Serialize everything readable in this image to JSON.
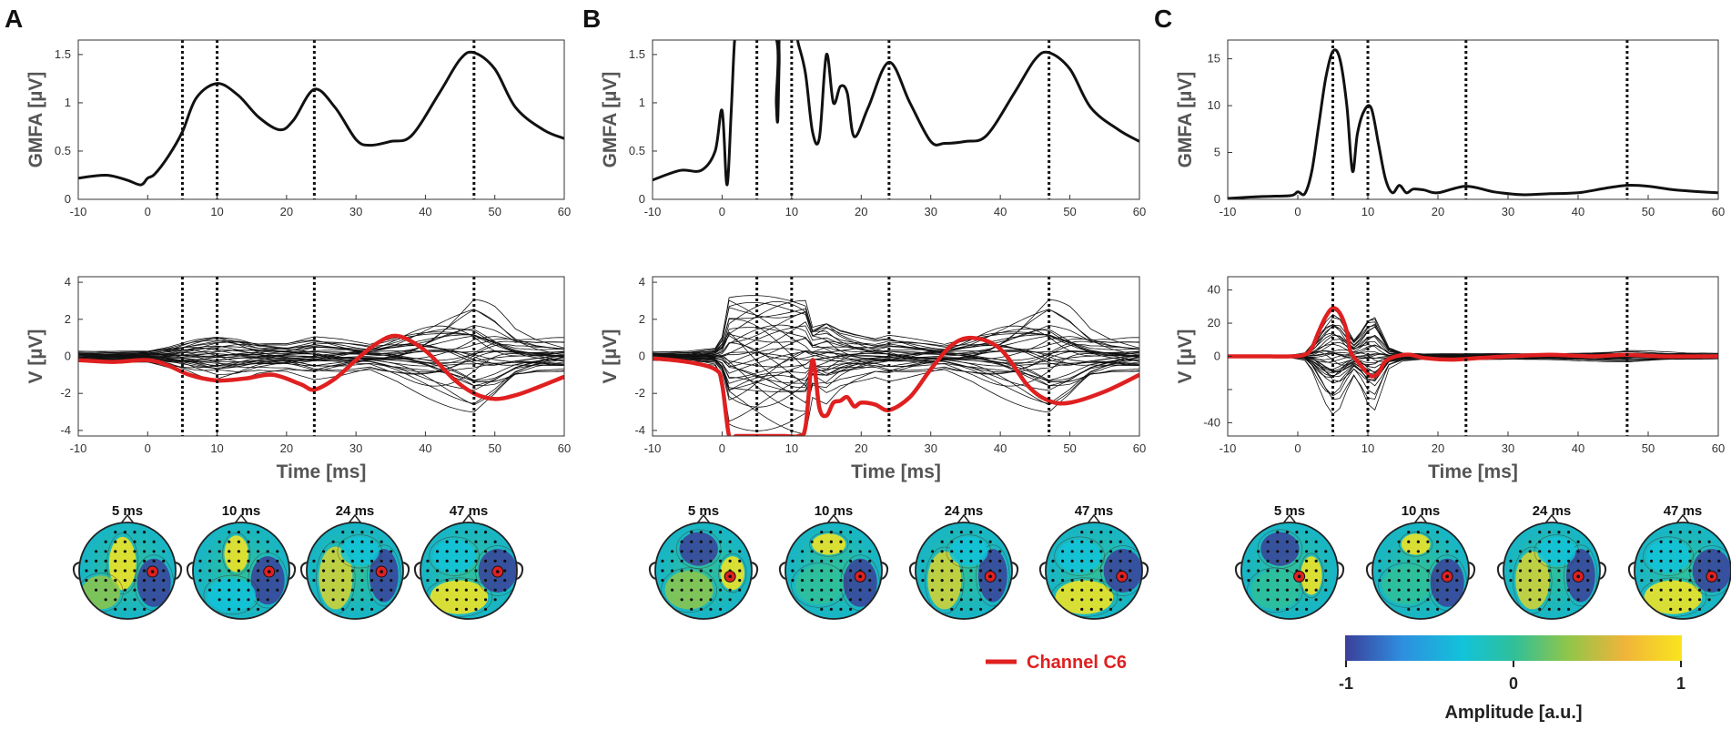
{
  "figure": {
    "panels": [
      "A",
      "B",
      "C"
    ],
    "gmfa_ylabel": "GMFA [µV]",
    "v_ylabel": "V [µV]",
    "xlabel": "Time [ms]",
    "legend_label": "Channel C6",
    "colorbar": {
      "label": "Amplitude [a.u.]",
      "ticks": [
        "-1",
        "0",
        "1"
      ],
      "colors": [
        "#3b3f99",
        "#2e8fe0",
        "#12c3d9",
        "#2fbf9a",
        "#8ec64a",
        "#f0b43a",
        "#f9e51d"
      ]
    },
    "topo_times": [
      "5 ms",
      "10 ms",
      "24 ms",
      "47 ms"
    ],
    "colors": {
      "trace": "#111111",
      "highlight": "#e02020",
      "axis": "#333333"
    }
  },
  "chart_data": [
    {
      "panel": "A",
      "type": "line",
      "title": "",
      "xlabel": "",
      "ylabel": "GMFA [µV]",
      "xlim": [
        -10,
        60
      ],
      "ylim": [
        0,
        1.65
      ],
      "xticks": [
        -10,
        0,
        10,
        20,
        30,
        40,
        50,
        60
      ],
      "yticks": [
        0,
        0.5,
        1,
        1.5
      ],
      "ytick_labels": [
        "0",
        "0.5",
        "1",
        "1.5"
      ],
      "vlines": [
        5,
        10,
        24,
        47
      ],
      "series": [
        {
          "name": "GMFA",
          "x": [
            -10,
            -6,
            -3,
            -1,
            0,
            1,
            3,
            5,
            7,
            10,
            13,
            16,
            19,
            21,
            24,
            27,
            30,
            32,
            35,
            38,
            42,
            45,
            47,
            50,
            53,
            57,
            60
          ],
          "y": [
            0.22,
            0.25,
            0.2,
            0.15,
            0.22,
            0.26,
            0.45,
            0.7,
            1.05,
            1.2,
            1.08,
            0.85,
            0.72,
            0.82,
            1.14,
            0.95,
            0.62,
            0.56,
            0.6,
            0.66,
            1.1,
            1.45,
            1.52,
            1.35,
            0.95,
            0.72,
            0.63
          ]
        }
      ]
    },
    {
      "panel": "A",
      "type": "line",
      "xlabel": "Time [ms]",
      "ylabel": "V [µV]",
      "xlim": [
        -10,
        60
      ],
      "ylim": [
        -4.3,
        4.3
      ],
      "xticks": [
        -10,
        0,
        10,
        20,
        30,
        40,
        50,
        60
      ],
      "yticks": [
        -4,
        -2,
        0,
        2,
        4
      ],
      "ytick_labels": [
        "-4",
        "-2",
        "0",
        "2",
        "4"
      ],
      "vlines": [
        5,
        10,
        24,
        47
      ],
      "highlight": {
        "name": "Channel C6",
        "x": [
          -10,
          -5,
          0,
          3,
          6,
          10,
          14,
          18,
          22,
          24,
          27,
          30,
          33,
          36,
          40,
          44,
          47,
          50,
          53,
          56,
          60
        ],
        "y": [
          -0.2,
          -0.3,
          -0.2,
          -0.5,
          -1.0,
          -1.3,
          -1.2,
          -1.0,
          -1.5,
          -1.8,
          -1.2,
          -0.2,
          0.7,
          1.1,
          0.3,
          -1.2,
          -2.0,
          -2.3,
          -2.1,
          -1.7,
          -1.1
        ]
      },
      "butterfly": {
        "channels": 36,
        "x": [
          -10,
          -5,
          0,
          3,
          5,
          7,
          10,
          13,
          16,
          20,
          24,
          28,
          32,
          36,
          40,
          44,
          47,
          50,
          53,
          56,
          60
        ],
        "profile": [
          0.35,
          0.35,
          0.4,
          0.7,
          1.0,
          1.3,
          1.6,
          1.4,
          1.0,
          0.9,
          1.3,
          1.1,
          0.8,
          1.4,
          2.2,
          3.0,
          3.6,
          2.8,
          1.6,
          1.2,
          1.1
        ]
      }
    },
    {
      "panel": "B",
      "type": "line",
      "xlabel": "",
      "ylabel": "GMFA [µV]",
      "xlim": [
        -10,
        60
      ],
      "ylim": [
        0,
        1.65
      ],
      "xticks": [
        -10,
        0,
        10,
        20,
        30,
        40,
        50,
        60
      ],
      "yticks": [
        0,
        0.5,
        1,
        1.5
      ],
      "ytick_labels": [
        "0",
        "0.5",
        "1",
        "1.5"
      ],
      "vlines": [
        5,
        10,
        24,
        47
      ],
      "series": [
        {
          "name": "GMFA",
          "x": [
            -10,
            -6,
            -3,
            -1,
            0,
            0.7,
            1.3,
            1.8,
            2.2,
            7.6,
            7.8,
            8,
            8.2,
            8.4,
            10.5,
            11,
            12,
            13,
            14,
            15,
            16,
            17,
            18,
            19,
            21,
            24,
            27,
            30,
            32,
            35,
            38,
            42,
            45,
            47,
            50,
            53,
            57,
            60
          ],
          "y": [
            0.2,
            0.3,
            0.3,
            0.5,
            0.92,
            0.15,
            0.9,
            1.65,
            1.7,
            1.7,
            1.0,
            0.82,
            1.4,
            1.7,
            1.7,
            1.6,
            1.3,
            0.7,
            0.64,
            1.5,
            1.0,
            1.17,
            1.1,
            0.65,
            0.95,
            1.42,
            1.0,
            0.6,
            0.58,
            0.6,
            0.66,
            1.1,
            1.45,
            1.52,
            1.35,
            0.95,
            0.72,
            0.6
          ]
        }
      ]
    },
    {
      "panel": "B",
      "type": "line",
      "xlabel": "Time [ms]",
      "ylabel": "V [µV]",
      "xlim": [
        -10,
        60
      ],
      "ylim": [
        -4.3,
        4.3
      ],
      "xticks": [
        -10,
        0,
        10,
        20,
        30,
        40,
        50,
        60
      ],
      "yticks": [
        -4,
        -2,
        0,
        2,
        4
      ],
      "ytick_labels": [
        "-4",
        "-2",
        "0",
        "2",
        "4"
      ],
      "vlines": [
        5,
        10,
        24,
        47
      ],
      "highlight": {
        "name": "Channel C6",
        "x": [
          -10,
          -5,
          -1,
          0,
          1,
          2,
          3,
          7,
          9,
          11,
          12,
          13,
          14,
          15,
          16,
          17,
          18,
          19,
          20,
          22,
          24,
          27,
          30,
          33,
          36,
          40,
          44,
          47,
          50,
          55,
          60
        ],
        "y": [
          -0.1,
          -0.3,
          -0.7,
          -1.5,
          -4.3,
          -4.3,
          -4.3,
          -4.3,
          -4.3,
          -4.3,
          -3.8,
          -0.2,
          -2.8,
          -3.2,
          -2.5,
          -2.4,
          -2.2,
          -2.7,
          -2.5,
          -2.6,
          -2.9,
          -2.2,
          -0.7,
          0.6,
          1.0,
          0.4,
          -1.6,
          -2.4,
          -2.5,
          -1.9,
          -1.0
        ]
      },
      "butterfly": {
        "channels": 36,
        "x": [
          -10,
          -5,
          -1,
          0,
          1,
          2,
          4,
          6,
          8,
          10,
          12,
          13,
          15,
          17,
          19,
          22,
          24,
          28,
          32,
          36,
          40,
          44,
          47,
          50,
          53,
          56,
          60
        ],
        "profile": [
          0.3,
          0.35,
          0.6,
          1.5,
          4.6,
          4.6,
          4.6,
          4.6,
          4.6,
          4.6,
          4.6,
          2.4,
          2.8,
          2.0,
          1.6,
          1.2,
          1.4,
          1.1,
          0.8,
          1.4,
          2.2,
          3.0,
          3.6,
          2.8,
          1.6,
          1.2,
          1.1
        ]
      }
    },
    {
      "panel": "C",
      "type": "line",
      "xlabel": "",
      "ylabel": "GMFA [µV]",
      "xlim": [
        -10,
        60
      ],
      "ylim": [
        0,
        17
      ],
      "xticks": [
        -10,
        0,
        10,
        20,
        30,
        40,
        50,
        60
      ],
      "yticks": [
        0,
        5,
        10,
        15
      ],
      "ytick_labels": [
        "0",
        "5",
        "10",
        "15"
      ],
      "vlines": [
        5,
        10,
        24,
        47
      ],
      "series": [
        {
          "name": "GMFA",
          "x": [
            -10,
            -5,
            -1,
            0,
            1,
            2,
            3,
            4,
            5,
            6,
            7,
            7.8,
            8.5,
            9.5,
            10.5,
            11.5,
            12.5,
            13.5,
            14.5,
            15.5,
            16.5,
            18,
            20,
            24,
            28,
            32,
            36,
            40,
            44,
            47,
            50,
            54,
            60
          ],
          "y": [
            0.1,
            0.3,
            0.4,
            0.8,
            0.6,
            3,
            8,
            13,
            15.8,
            15,
            10,
            3,
            7,
            9.5,
            9.7,
            6,
            2.2,
            0.7,
            1.5,
            0.7,
            1.1,
            1.0,
            0.7,
            1.4,
            0.8,
            0.5,
            0.6,
            0.7,
            1.2,
            1.5,
            1.4,
            1.0,
            0.7
          ]
        }
      ]
    },
    {
      "panel": "C",
      "type": "line",
      "xlabel": "Time [ms]",
      "ylabel": "V [µV]",
      "xlim": [
        -10,
        60
      ],
      "ylim": [
        -48,
        48
      ],
      "xticks": [
        -10,
        0,
        10,
        20,
        30,
        40,
        50,
        60
      ],
      "yticks": [
        -40,
        -20,
        0,
        20,
        40
      ],
      "ytick_labels": [
        "-40",
        "",
        "0",
        "20",
        "40"
      ],
      "vlines": [
        5,
        10,
        24,
        47
      ],
      "highlight": {
        "name": "Channel C6",
        "x": [
          -10,
          -5,
          -1,
          1,
          2,
          3,
          4,
          5,
          6,
          7,
          7.5,
          8.5,
          9.5,
          10.5,
          11.5,
          12.5,
          14,
          16,
          18,
          22,
          26,
          30,
          36,
          42,
          47,
          52,
          60
        ],
        "y": [
          0,
          0,
          0,
          1,
          5,
          15,
          24,
          29,
          26,
          15,
          3,
          -3,
          -8,
          -12,
          -10,
          -3,
          0,
          1,
          -1,
          -2,
          -1,
          0,
          1,
          0,
          1,
          0,
          0
        ]
      },
      "butterfly": {
        "channels": 36,
        "x": [
          -10,
          -5,
          -1,
          1,
          2,
          3,
          4,
          5,
          6,
          7,
          8,
          9,
          10,
          11,
          12,
          13,
          15,
          18,
          22,
          26,
          30,
          36,
          42,
          47,
          52,
          60
        ],
        "profile": [
          0.8,
          0.8,
          1.0,
          3,
          10,
          22,
          33,
          40,
          36,
          24,
          14,
          22,
          33,
          36,
          22,
          8,
          3,
          2,
          2,
          2,
          2,
          2,
          3,
          4,
          3,
          2
        ]
      }
    }
  ]
}
